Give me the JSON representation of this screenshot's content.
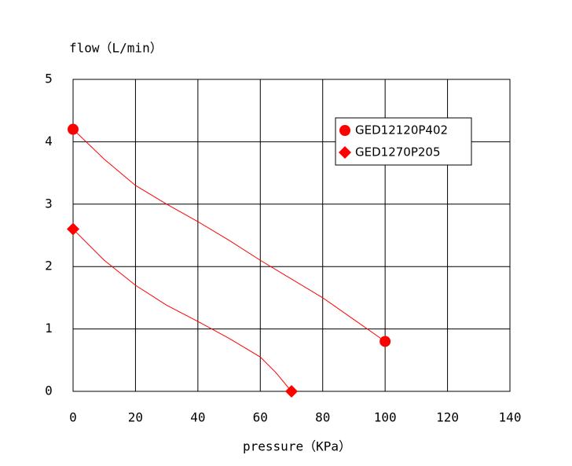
{
  "chart_data": {
    "type": "line",
    "x_label": "pressure（KPa）",
    "y_label": "flow（L/min）",
    "xlim": [
      0,
      140
    ],
    "xticks": [
      0,
      20,
      40,
      60,
      80,
      100,
      120,
      140
    ],
    "ylim": [
      0,
      5
    ],
    "yticks": [
      0,
      1,
      2,
      3,
      4,
      5
    ],
    "grid": true,
    "legend": "upper right",
    "markers": "ends",
    "series": [
      {
        "name": "GED12120P402",
        "color": "#ff0000",
        "marker": "circle",
        "x": [
          0,
          10,
          20,
          30,
          40,
          50,
          60,
          70,
          80,
          90,
          100
        ],
        "values": [
          4.2,
          3.72,
          3.3,
          3.0,
          2.72,
          2.42,
          2.1,
          1.8,
          1.5,
          1.15,
          0.8
        ]
      },
      {
        "name": "GED1270P205",
        "color": "#ff0000",
        "marker": "diamond",
        "x": [
          0,
          10,
          20,
          30,
          40,
          50,
          60,
          65,
          70
        ],
        "values": [
          2.6,
          2.1,
          1.7,
          1.38,
          1.12,
          0.85,
          0.55,
          0.3,
          0
        ]
      }
    ]
  }
}
